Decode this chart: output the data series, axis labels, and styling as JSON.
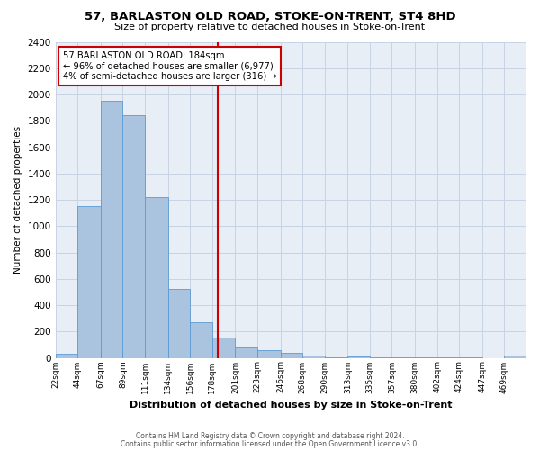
{
  "title": "57, BARLASTON OLD ROAD, STOKE-ON-TRENT, ST4 8HD",
  "subtitle": "Size of property relative to detached houses in Stoke-on-Trent",
  "xlabel": "Distribution of detached houses by size in Stoke-on-Trent",
  "ylabel": "Number of detached properties",
  "bin_labels": [
    "22sqm",
    "44sqm",
    "67sqm",
    "89sqm",
    "111sqm",
    "134sqm",
    "156sqm",
    "178sqm",
    "201sqm",
    "223sqm",
    "246sqm",
    "268sqm",
    "290sqm",
    "313sqm",
    "335sqm",
    "357sqm",
    "380sqm",
    "402sqm",
    "424sqm",
    "447sqm",
    "469sqm"
  ],
  "bin_edges": [
    22,
    44,
    67,
    89,
    111,
    134,
    156,
    178,
    201,
    223,
    246,
    268,
    290,
    313,
    335,
    357,
    380,
    402,
    424,
    447,
    469,
    491
  ],
  "bar_heights": [
    30,
    1150,
    1950,
    1840,
    1220,
    520,
    270,
    155,
    80,
    55,
    35,
    20,
    5,
    10,
    5,
    2,
    2,
    2,
    2,
    0,
    15
  ],
  "bar_color": "#aac4e0",
  "bar_edge_color": "#5b9bd5",
  "grid_color": "#c8d4e3",
  "bg_color": "#e8eef6",
  "vline_x": 184,
  "vline_color": "#cc0000",
  "annotation_line1": "57 BARLASTON OLD ROAD: 184sqm",
  "annotation_line2": "← 96% of detached houses are smaller (6,977)",
  "annotation_line3": "4% of semi-detached houses are larger (316) →",
  "annotation_box_color": "#cc0000",
  "ylim": [
    0,
    2400
  ],
  "yticks": [
    0,
    200,
    400,
    600,
    800,
    1000,
    1200,
    1400,
    1600,
    1800,
    2000,
    2200,
    2400
  ],
  "footnote1": "Contains HM Land Registry data © Crown copyright and database right 2024.",
  "footnote2": "Contains public sector information licensed under the Open Government Licence v3.0."
}
